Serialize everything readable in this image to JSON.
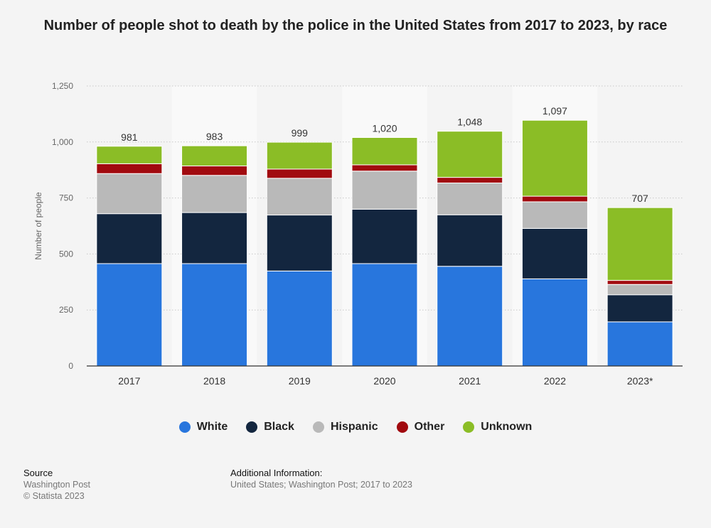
{
  "title": "Number of people shot to death by the police in the United States from 2017 to 2023, by race",
  "legend": [
    {
      "label": "White",
      "color": "#2876dd"
    },
    {
      "label": "Black",
      "color": "#13263f"
    },
    {
      "label": "Hispanic",
      "color": "#b9b9b9"
    },
    {
      "label": "Other",
      "color": "#a10a0f"
    },
    {
      "label": "Unknown",
      "color": "#8bbd26"
    }
  ],
  "footer": {
    "source_heading": "Source",
    "source_lines": [
      "Washington Post",
      "© Statista 2023"
    ],
    "info_heading": "Additional Information:",
    "info_text": "United States; Washington Post; 2017 to 2023"
  },
  "chart_data": {
    "type": "bar",
    "stacked": true,
    "ylabel": "Number of people",
    "xlabel": "",
    "ylim": [
      0,
      1250
    ],
    "yticks": [
      0,
      250,
      500,
      750,
      1000,
      1250
    ],
    "ytick_labels": [
      "0",
      "250",
      "500",
      "750",
      "1,000",
      "1,250"
    ],
    "categories": [
      "2017",
      "2018",
      "2019",
      "2020",
      "2021",
      "2022",
      "2023*"
    ],
    "totals": [
      "981",
      "983",
      "999",
      "1,020",
      "1,048",
      "1,097",
      "707"
    ],
    "series": [
      {
        "name": "White",
        "color": "#2876dd",
        "values": [
          457,
          457,
          424,
          457,
          445,
          389,
          197
        ]
      },
      {
        "name": "Black",
        "color": "#13263f",
        "values": [
          223,
          228,
          250,
          243,
          230,
          225,
          121
        ]
      },
      {
        "name": "Hispanic",
        "color": "#b9b9b9",
        "values": [
          179,
          166,
          164,
          170,
          142,
          119,
          46
        ]
      },
      {
        "name": "Other",
        "color": "#a10a0f",
        "values": [
          44,
          42,
          41,
          28,
          25,
          25,
          18
        ]
      },
      {
        "name": "Unknown",
        "color": "#8bbd26",
        "values": [
          78,
          90,
          120,
          122,
          206,
          339,
          325
        ]
      }
    ],
    "grid": true,
    "legend_position": "bottom"
  }
}
